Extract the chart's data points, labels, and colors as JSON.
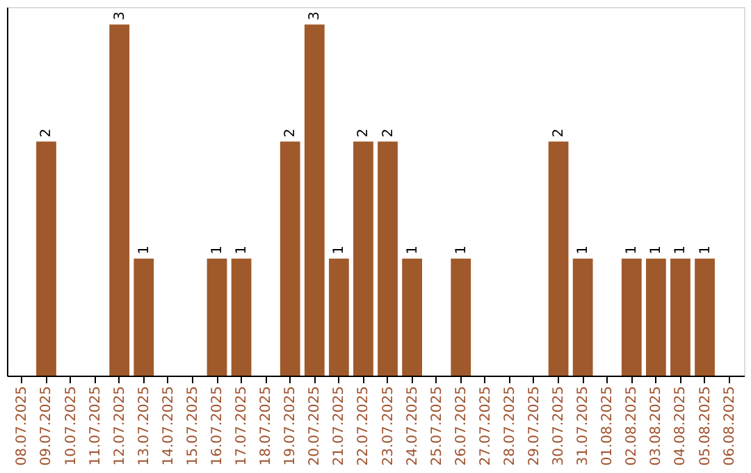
{
  "chart_data": {
    "type": "bar",
    "categories": [
      "08.07.2025",
      "09.07.2025",
      "10.07.2025",
      "11.07.2025",
      "12.07.2025",
      "13.07.2025",
      "14.07.2025",
      "15.07.2025",
      "16.07.2025",
      "17.07.2025",
      "18.07.2025",
      "19.07.2025",
      "20.07.2025",
      "21.07.2025",
      "22.07.2025",
      "23.07.2025",
      "24.07.2025",
      "25.07.2025",
      "26.07.2025",
      "27.07.2025",
      "28.07.2025",
      "29.07.2025",
      "30.07.2025",
      "31.07.2025",
      "01.08.2025",
      "02.08.2025",
      "03.08.2025",
      "04.08.2025",
      "05.08.2025",
      "06.08.2025"
    ],
    "values": [
      0,
      2,
      0,
      0,
      3,
      1,
      0,
      0,
      1,
      1,
      0,
      2,
      3,
      1,
      2,
      2,
      1,
      0,
      1,
      0,
      0,
      0,
      2,
      1,
      0,
      1,
      1,
      1,
      1,
      0
    ],
    "value_labels": [
      null,
      "2",
      null,
      null,
      "3",
      "1",
      null,
      null,
      "1",
      "1",
      null,
      "2",
      "3",
      "1",
      "2",
      "2",
      "1",
      null,
      "1",
      null,
      null,
      null,
      "2",
      "1",
      null,
      "1",
      "1",
      "1",
      "1",
      null
    ],
    "color": "#a0592a",
    "ylim": [
      0,
      3.15
    ],
    "tick_labels": "x",
    "grid": false
  }
}
